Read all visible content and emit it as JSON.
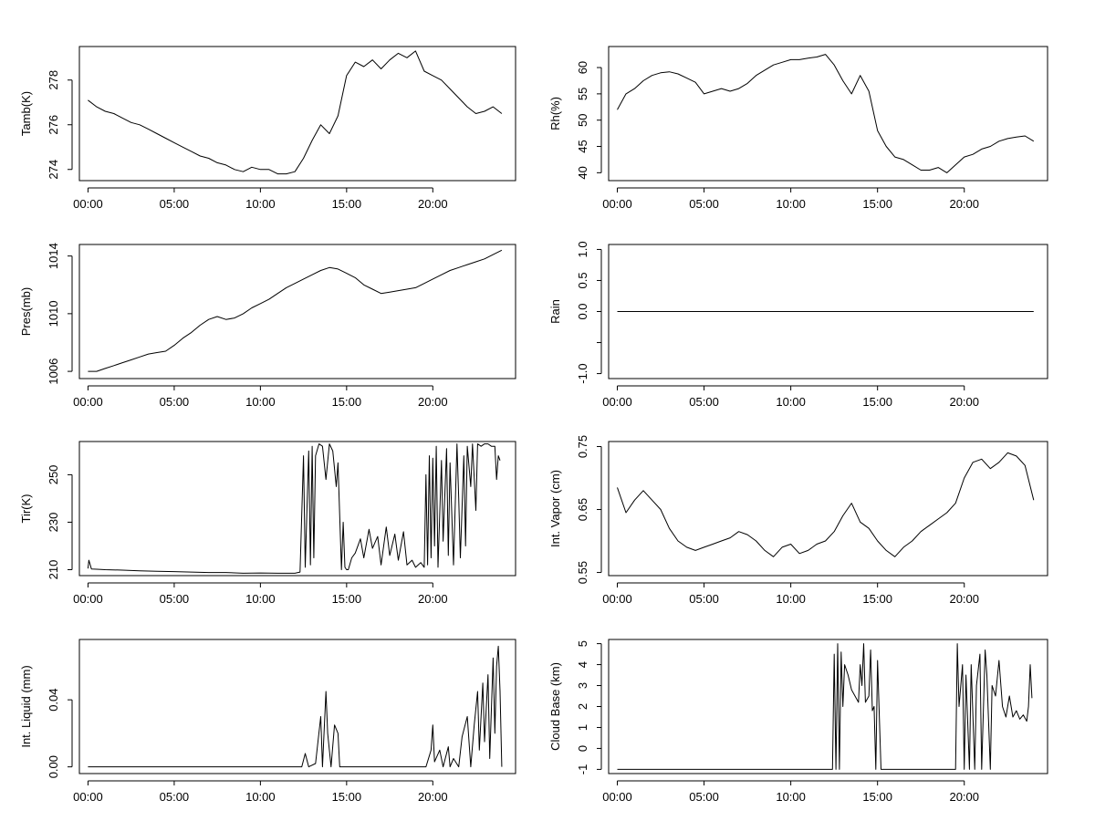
{
  "chart_data": [
    {
      "type": "line",
      "ylabel": "Tamb(K)",
      "ylim": [
        273.5,
        279.5
      ],
      "yticks": [
        274,
        276,
        278
      ],
      "yticklabels": [
        "274",
        "276",
        "278"
      ],
      "xlim": [
        -0.5,
        24.8
      ],
      "xticks": [
        0,
        5,
        10,
        15,
        20
      ],
      "xticklabels": [
        "00:00",
        "05:00",
        "10:00",
        "15:00",
        "20:00"
      ],
      "x": [
        0,
        0.5,
        1,
        1.5,
        2,
        2.5,
        3,
        3.5,
        4,
        4.5,
        5,
        5.5,
        6,
        6.5,
        7,
        7.5,
        8,
        8.5,
        9,
        9.5,
        10,
        10.5,
        11,
        11.5,
        12,
        12.5,
        13,
        13.5,
        14,
        14.5,
        15,
        15.5,
        16,
        16.5,
        17,
        17.5,
        18,
        18.5,
        19,
        19.5,
        20,
        20.5,
        21,
        21.5,
        22,
        22.5,
        23,
        23.5,
        24
      ],
      "values": [
        277.1,
        276.8,
        276.6,
        276.5,
        276.3,
        276.1,
        276.0,
        275.8,
        275.6,
        275.4,
        275.2,
        275.0,
        274.8,
        274.6,
        274.5,
        274.3,
        274.2,
        274.0,
        273.9,
        274.1,
        274.0,
        274.0,
        273.8,
        273.8,
        273.9,
        274.5,
        275.3,
        276.0,
        275.6,
        276.4,
        278.2,
        278.8,
        278.6,
        278.9,
        278.5,
        278.9,
        279.2,
        279.0,
        279.3,
        278.4,
        278.2,
        278.0,
        277.6,
        277.2,
        276.8,
        276.5,
        276.6,
        276.8,
        276.5
      ]
    },
    {
      "type": "line",
      "ylabel": "Rh(%)",
      "ylim": [
        38.5,
        64
      ],
      "yticks": [
        40,
        45,
        50,
        55,
        60
      ],
      "yticklabels": [
        "40",
        "45",
        "50",
        "55",
        "60"
      ],
      "xlim": [
        -0.5,
        24.8
      ],
      "xticks": [
        0,
        5,
        10,
        15,
        20
      ],
      "xticklabels": [
        "00:00",
        "05:00",
        "10:00",
        "15:00",
        "20:00"
      ],
      "x": [
        0,
        0.5,
        1,
        1.5,
        2,
        2.5,
        3,
        3.5,
        4,
        4.5,
        5,
        5.5,
        6,
        6.5,
        7,
        7.5,
        8,
        8.5,
        9,
        9.5,
        10,
        10.5,
        11,
        11.5,
        12,
        12.5,
        13,
        13.5,
        14,
        14.5,
        15,
        15.5,
        16,
        16.5,
        17,
        17.5,
        18,
        18.5,
        19,
        19.5,
        20,
        20.5,
        21,
        21.5,
        22,
        22.5,
        23,
        23.5,
        24
      ],
      "values": [
        52.0,
        55.0,
        56.0,
        57.5,
        58.5,
        59.0,
        59.2,
        58.8,
        58.0,
        57.2,
        55.0,
        55.5,
        56.0,
        55.5,
        56.0,
        57.0,
        58.5,
        59.5,
        60.5,
        61.0,
        61.5,
        61.5,
        61.8,
        62.0,
        62.5,
        60.5,
        57.5,
        55.0,
        58.5,
        55.5,
        48.0,
        45.0,
        43.0,
        42.5,
        41.5,
        40.5,
        40.5,
        41.0,
        40.0,
        41.5,
        43.0,
        43.5,
        44.5,
        45.0,
        46.0,
        46.5,
        46.8,
        47.0,
        46.0
      ]
    },
    {
      "type": "line",
      "ylabel": "Pres(mb)",
      "ylim": [
        1005.5,
        1014.8
      ],
      "yticks": [
        1006,
        1010,
        1014
      ],
      "yticklabels": [
        "1006",
        "1010",
        "1014"
      ],
      "xlim": [
        -0.5,
        24.8
      ],
      "xticks": [
        0,
        5,
        10,
        15,
        20
      ],
      "xticklabels": [
        "00:00",
        "05:00",
        "10:00",
        "15:00",
        "20:00"
      ],
      "x": [
        0,
        0.5,
        1,
        1.5,
        2,
        2.5,
        3,
        3.5,
        4,
        4.5,
        5,
        5.5,
        6,
        6.5,
        7,
        7.5,
        8,
        8.5,
        9,
        9.5,
        10,
        10.5,
        11,
        11.5,
        12,
        12.5,
        13,
        13.5,
        14,
        14.5,
        15,
        15.5,
        16,
        16.5,
        17,
        17.5,
        18,
        18.5,
        19,
        19.5,
        20,
        20.5,
        21,
        21.5,
        22,
        22.5,
        23,
        23.5,
        24
      ],
      "values": [
        1006.0,
        1006.0,
        1006.2,
        1006.4,
        1006.6,
        1006.8,
        1007.0,
        1007.2,
        1007.3,
        1007.4,
        1007.8,
        1008.3,
        1008.7,
        1009.2,
        1009.6,
        1009.8,
        1009.6,
        1009.7,
        1010.0,
        1010.4,
        1010.7,
        1011.0,
        1011.4,
        1011.8,
        1012.1,
        1012.4,
        1012.7,
        1013.0,
        1013.2,
        1013.1,
        1012.8,
        1012.5,
        1012.0,
        1011.7,
        1011.4,
        1011.5,
        1011.6,
        1011.7,
        1011.8,
        1012.1,
        1012.4,
        1012.7,
        1013.0,
        1013.2,
        1013.4,
        1013.6,
        1013.8,
        1014.1,
        1014.4
      ]
    },
    {
      "type": "line",
      "ylabel": "Rain",
      "ylim": [
        -1.08,
        1.08
      ],
      "yticks": [
        -1.0,
        -0.5,
        0.0,
        0.5,
        1.0
      ],
      "yticklabels": [
        "-1.0",
        "",
        "0.0",
        "0.5",
        "1.0"
      ],
      "xlim": [
        -0.5,
        24.8
      ],
      "xticks": [
        0,
        5,
        10,
        15,
        20
      ],
      "xticklabels": [
        "00:00",
        "05:00",
        "10:00",
        "15:00",
        "20:00"
      ],
      "x": [
        0,
        24
      ],
      "values": [
        0,
        0
      ]
    },
    {
      "type": "line",
      "ylabel": "Tir(K)",
      "ylim": [
        207.5,
        264
      ],
      "yticks": [
        210,
        230,
        250
      ],
      "yticklabels": [
        "210",
        "230",
        "250"
      ],
      "xlim": [
        -0.5,
        24.8
      ],
      "xticks": [
        0,
        5,
        10,
        15,
        20
      ],
      "xticklabels": [
        "00:00",
        "05:00",
        "10:00",
        "15:00",
        "20:00"
      ],
      "x": [
        0,
        0.05,
        0.2,
        0.5,
        1,
        2,
        3,
        4,
        5,
        6,
        7,
        8,
        9,
        10,
        11,
        12,
        12.3,
        12.5,
        12.6,
        12.8,
        12.9,
        13.0,
        13.1,
        13.2,
        13.4,
        13.6,
        13.8,
        14.0,
        14.2,
        14.4,
        14.5,
        14.7,
        14.8,
        14.9,
        15.0,
        15.1,
        15.3,
        15.5,
        15.8,
        16.0,
        16.3,
        16.5,
        16.8,
        17.0,
        17.3,
        17.5,
        17.8,
        18.0,
        18.3,
        18.5,
        18.8,
        19.0,
        19.3,
        19.5,
        19.6,
        19.7,
        19.8,
        19.9,
        20.0,
        20.1,
        20.2,
        20.3,
        20.5,
        20.6,
        20.8,
        20.9,
        21.0,
        21.2,
        21.4,
        21.5,
        21.6,
        21.8,
        21.9,
        22.0,
        22.2,
        22.3,
        22.5,
        22.6,
        22.8,
        23.0,
        23.2,
        23.4,
        23.6,
        23.7,
        23.8,
        23.9
      ],
      "values": [
        210.5,
        214,
        210.3,
        210.2,
        210.0,
        209.8,
        209.5,
        209.3,
        209.2,
        209.0,
        208.8,
        208.8,
        208.5,
        208.6,
        208.5,
        208.5,
        209.0,
        258,
        211,
        260,
        212,
        262,
        215,
        258,
        263,
        262,
        248,
        263,
        260,
        245,
        255,
        210,
        230,
        211,
        210,
        210,
        215,
        217,
        223,
        215,
        227,
        219,
        224,
        212,
        228,
        216,
        225,
        214,
        226,
        212,
        214,
        211,
        213,
        211,
        250,
        212,
        258,
        215,
        257,
        220,
        262,
        211,
        256,
        222,
        261,
        216,
        255,
        212,
        263,
        240,
        215,
        258,
        220,
        262,
        245,
        263,
        235,
        263,
        262,
        263,
        263,
        262,
        262,
        248,
        258,
        256
      ]
    },
    {
      "type": "line",
      "ylabel": "Int. Vapor (cm)",
      "ylim": [
        0.545,
        0.758
      ],
      "yticks": [
        0.55,
        0.65,
        0.75
      ],
      "yticklabels": [
        "0.55",
        "0.65",
        "0.75"
      ],
      "xlim": [
        -0.5,
        24.8
      ],
      "xticks": [
        0,
        5,
        10,
        15,
        20
      ],
      "xticklabels": [
        "00:00",
        "05:00",
        "10:00",
        "15:00",
        "20:00"
      ],
      "x": [
        0,
        0.5,
        1,
        1.5,
        2,
        2.5,
        3,
        3.5,
        4,
        4.5,
        5,
        5.5,
        6,
        6.5,
        7,
        7.5,
        8,
        8.5,
        9,
        9.5,
        10,
        10.5,
        11,
        11.5,
        12,
        12.5,
        13,
        13.5,
        14,
        14.5,
        15,
        15.5,
        16,
        16.5,
        17,
        17.5,
        18,
        18.5,
        19,
        19.5,
        20,
        20.5,
        21,
        21.5,
        22,
        22.5,
        23,
        23.5,
        24
      ],
      "values": [
        0.685,
        0.645,
        0.665,
        0.68,
        0.665,
        0.65,
        0.62,
        0.6,
        0.59,
        0.585,
        0.59,
        0.595,
        0.6,
        0.605,
        0.615,
        0.61,
        0.6,
        0.585,
        0.575,
        0.59,
        0.595,
        0.58,
        0.585,
        0.595,
        0.6,
        0.615,
        0.64,
        0.66,
        0.63,
        0.62,
        0.6,
        0.585,
        0.575,
        0.59,
        0.6,
        0.615,
        0.625,
        0.635,
        0.645,
        0.66,
        0.7,
        0.725,
        0.73,
        0.715,
        0.725,
        0.74,
        0.735,
        0.72,
        0.665
      ]
    },
    {
      "type": "line",
      "ylabel": "Int. Liquid (mm)",
      "ylim": [
        -0.004,
        0.076
      ],
      "yticks": [
        0.0,
        0.04
      ],
      "yticklabels": [
        "0.00",
        "0.04"
      ],
      "xlim": [
        -0.5,
        24.8
      ],
      "xticks": [
        0,
        5,
        10,
        15,
        20
      ],
      "xticklabels": [
        "00:00",
        "05:00",
        "10:00",
        "15:00",
        "20:00"
      ],
      "x": [
        0,
        12.4,
        12.6,
        12.8,
        13.2,
        13.5,
        13.6,
        13.8,
        13.9,
        14.1,
        14.3,
        14.5,
        14.6,
        19.6,
        19.9,
        20.0,
        20.1,
        20.4,
        20.6,
        20.9,
        21.0,
        21.2,
        21.5,
        21.7,
        22.0,
        22.2,
        22.4,
        22.6,
        22.7,
        22.9,
        23.0,
        23.2,
        23.3,
        23.5,
        23.6,
        23.7,
        23.8,
        23.9,
        24.0
      ],
      "values": [
        0.0,
        0.0,
        0.008,
        0.0,
        0.002,
        0.03,
        0.0,
        0.045,
        0.02,
        0.0,
        0.025,
        0.02,
        0.0,
        0.0,
        0.01,
        0.025,
        0.003,
        0.01,
        0.0,
        0.012,
        0.0,
        0.005,
        0.0,
        0.018,
        0.03,
        0.0,
        0.025,
        0.045,
        0.01,
        0.05,
        0.015,
        0.055,
        0.005,
        0.065,
        0.02,
        0.06,
        0.072,
        0.045,
        0.0
      ]
    },
    {
      "type": "line",
      "ylabel": "Cloud Base (km)",
      "ylim": [
        -1.2,
        5.2
      ],
      "yticks": [
        -1,
        0,
        1,
        2,
        3,
        4,
        5
      ],
      "yticklabels": [
        "-1",
        "0",
        "1",
        "2",
        "3",
        "4",
        "5"
      ],
      "xlim": [
        -0.5,
        24.8
      ],
      "xticks": [
        0,
        5,
        10,
        15,
        20
      ],
      "xticklabels": [
        "00:00",
        "05:00",
        "10:00",
        "15:00",
        "20:00"
      ],
      "x": [
        0,
        12.4,
        12.5,
        12.6,
        12.7,
        12.8,
        12.9,
        13.0,
        13.1,
        13.3,
        13.5,
        13.7,
        13.9,
        14.0,
        14.1,
        14.2,
        14.3,
        14.5,
        14.6,
        14.7,
        14.8,
        14.9,
        15.0,
        15.2,
        19.5,
        19.6,
        19.7,
        19.9,
        20.0,
        20.1,
        20.3,
        20.4,
        20.6,
        20.7,
        20.9,
        21.0,
        21.2,
        21.3,
        21.5,
        21.6,
        21.8,
        22.0,
        22.2,
        22.4,
        22.6,
        22.8,
        23.0,
        23.2,
        23.4,
        23.6,
        23.7,
        23.8,
        23.9
      ],
      "values": [
        -1,
        -1,
        4.5,
        -1,
        5.0,
        -1,
        4.6,
        2.0,
        4.0,
        3.5,
        2.8,
        2.5,
        2.2,
        4.0,
        3.0,
        5.0,
        2.2,
        2.5,
        4.7,
        1.8,
        2.0,
        -1,
        4.2,
        -1,
        -1,
        5.0,
        2.0,
        4.0,
        -1,
        3.5,
        -1,
        4.0,
        -1,
        3.0,
        4.5,
        -1,
        4.7,
        3.5,
        -1,
        3.0,
        2.5,
        4.2,
        2.0,
        1.5,
        2.5,
        1.5,
        1.8,
        1.4,
        1.6,
        1.3,
        2.0,
        4.0,
        2.4
      ]
    }
  ]
}
